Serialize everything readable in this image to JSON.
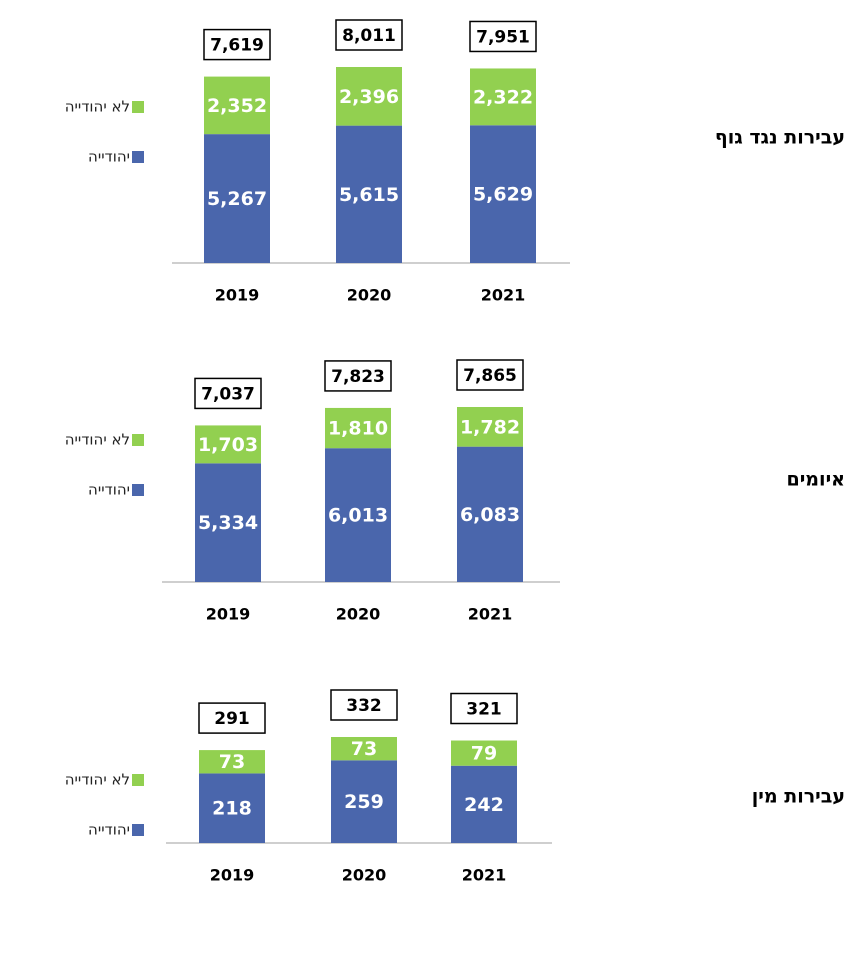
{
  "chart_data": [
    {
      "type": "stacked_bar",
      "title": "עבירות נגד גוף",
      "categories": [
        "2019",
        "2020",
        "2021"
      ],
      "series": [
        {
          "name": "יהודייה",
          "color": "#4a66ac",
          "values": [
            5267,
            5615,
            5629
          ],
          "value_labels": [
            "5,267",
            "5,615",
            "5,629"
          ]
        },
        {
          "name": "לא יהודייה",
          "color": "#92d050",
          "values": [
            2352,
            2396,
            2322
          ],
          "value_labels": [
            "2,352",
            "2,396",
            "2,322"
          ]
        }
      ],
      "totals": [
        7619,
        8011,
        7951
      ],
      "total_labels": [
        "7,619",
        "8,011",
        "7,951"
      ]
    },
    {
      "type": "stacked_bar",
      "title": "איומים",
      "categories": [
        "2019",
        "2020",
        "2021"
      ],
      "series": [
        {
          "name": "יהודייה",
          "color": "#4a66ac",
          "values": [
            5334,
            6013,
            6083
          ],
          "value_labels": [
            "5,334",
            "6,013",
            "6,083"
          ]
        },
        {
          "name": "לא יהודייה",
          "color": "#92d050",
          "values": [
            1703,
            1810,
            1782
          ],
          "value_labels": [
            "1,703",
            "1,810",
            "1,782"
          ]
        }
      ],
      "totals": [
        7037,
        7823,
        7865
      ],
      "total_labels": [
        "7,037",
        "7,823",
        "7,865"
      ]
    },
    {
      "type": "stacked_bar",
      "title": "עבירות מין",
      "categories": [
        "2019",
        "2020",
        "2021"
      ],
      "series": [
        {
          "name": "יהודייה",
          "color": "#4a66ac",
          "values": [
            218,
            259,
            242
          ]
        },
        {
          "name": "לא יהודייה",
          "color": "#92d050",
          "values": [
            73,
            73,
            79
          ]
        }
      ],
      "totals": [
        291,
        332,
        321
      ]
    }
  ]
}
